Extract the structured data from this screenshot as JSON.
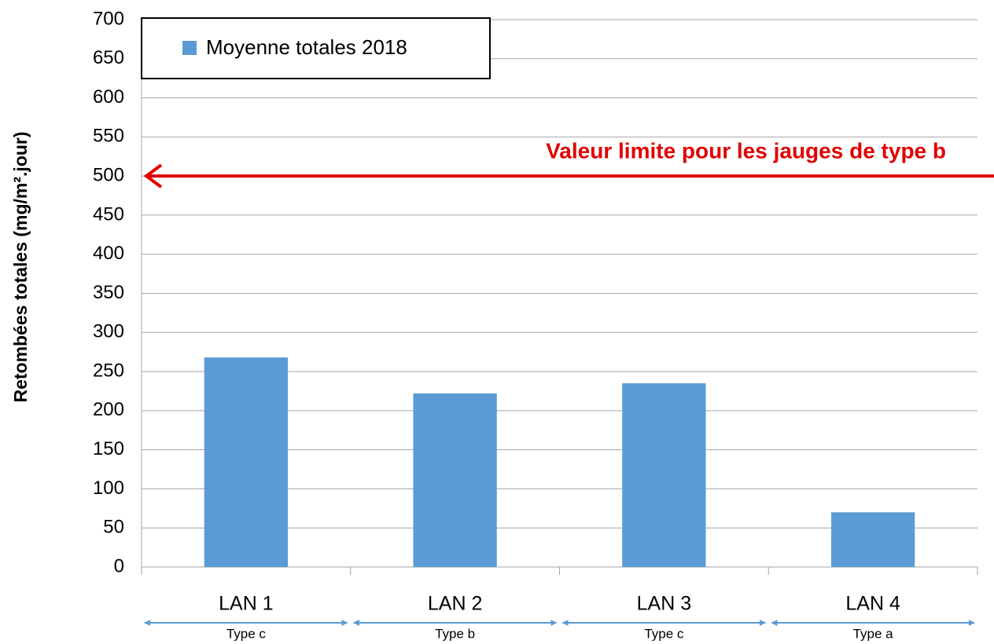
{
  "chart_data": {
    "type": "bar",
    "y_label": "Retombées totales (mg/m².jour)",
    "categories": [
      "LAN 1",
      "LAN 2",
      "LAN 3",
      "LAN 4"
    ],
    "sub_labels": [
      "Type c",
      "Type b",
      "Type c",
      "Type a"
    ],
    "series": [
      {
        "name": "Moyenne totales 2018",
        "color": "#5b9bd5",
        "values": [
          268,
          222,
          235,
          70
        ]
      }
    ],
    "ylim": [
      0,
      700
    ],
    "yticks": [
      0,
      50,
      100,
      150,
      200,
      250,
      300,
      350,
      400,
      450,
      500,
      550,
      600,
      650,
      700
    ],
    "grid": true,
    "legend": "upper left",
    "annotation": {
      "text": "Valeur limite pour les jauges de type b",
      "value": 500,
      "color": "#e00000"
    }
  }
}
